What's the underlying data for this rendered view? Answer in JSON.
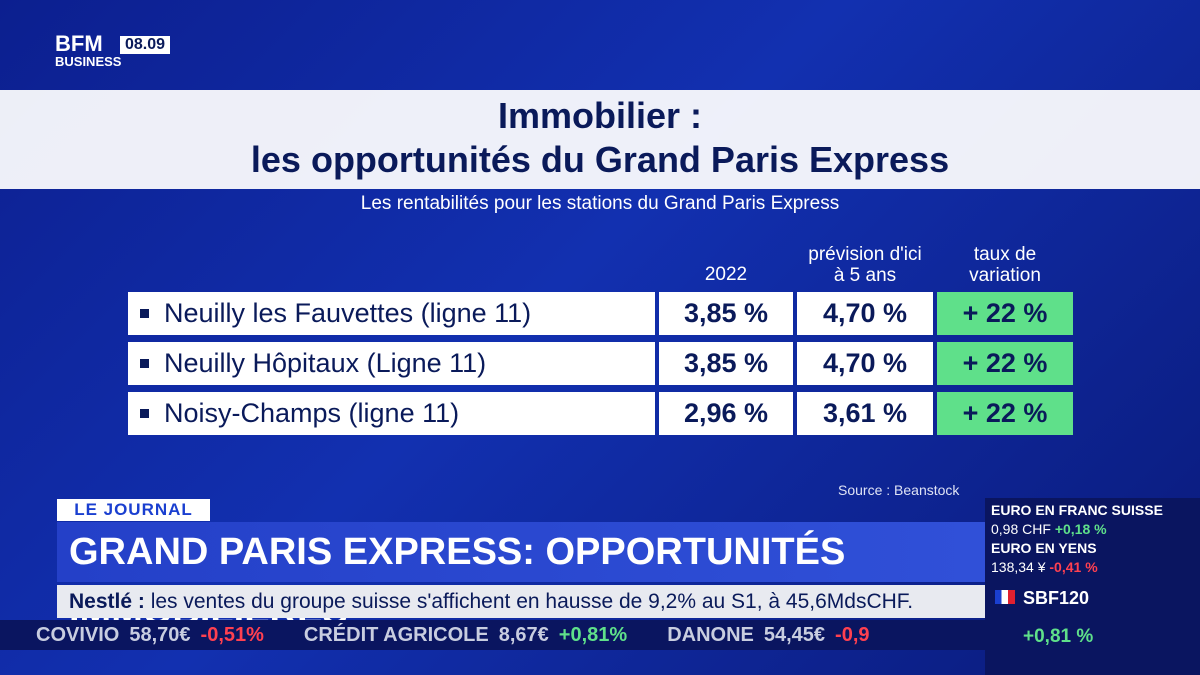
{
  "logo": {
    "brand": "BFM",
    "sub": "BUSINESS",
    "time": "08.09"
  },
  "header": {
    "title_line1": "Immobilier :",
    "title_line2": "les opportunités du Grand Paris Express",
    "subtitle": "Les rentabilités pour les stations du Grand Paris Express"
  },
  "table": {
    "columns": [
      "2022",
      "prévision d'ici\nà 5 ans",
      "taux de\nvariation"
    ],
    "rows": [
      [
        "Neuilly les Fauvettes (ligne 11)",
        "3,85 %",
        "4,70 %",
        "+ 22 %"
      ],
      [
        "Neuilly Hôpitaux (Ligne 11)",
        "3,85 %",
        "4,70 %",
        "+ 22 %"
      ],
      [
        "Noisy-Champs (ligne 11)",
        "2,96 %",
        "3,61 %",
        "+ 22 %"
      ]
    ],
    "source": "Source : Beanstock"
  },
  "banner": {
    "label": "LE JOURNAL",
    "headline": "GRAND PARIS EXPRESS: OPPORTUNITÉS IMMOBILIÈRES"
  },
  "news_ticker": {
    "company": "Nestlé :",
    "text": "les ventes du groupe suisse s'affichent en hausse de 9,2% au S1, à 45,6MdsCHF."
  },
  "stock_ticker": [
    {
      "name": "COVIVIO",
      "price": "58,70€",
      "change": "-0,51%"
    },
    {
      "name": "CRÉDIT AGRICOLE",
      "price": "8,67€",
      "change": "+0,81%"
    },
    {
      "name": "DANONE",
      "price": "54,45€",
      "change": "-0,9"
    }
  ],
  "markets": [
    {
      "name": "EURO EN FRANC SUISSE",
      "value": "0,98 CHF",
      "change": "+0,18 %"
    },
    {
      "name": "EURO EN YENS",
      "value": "138,34 ¥",
      "change": "-0,41 %"
    },
    {
      "name": "SBF120",
      "change": "+0,81 %"
    }
  ]
}
